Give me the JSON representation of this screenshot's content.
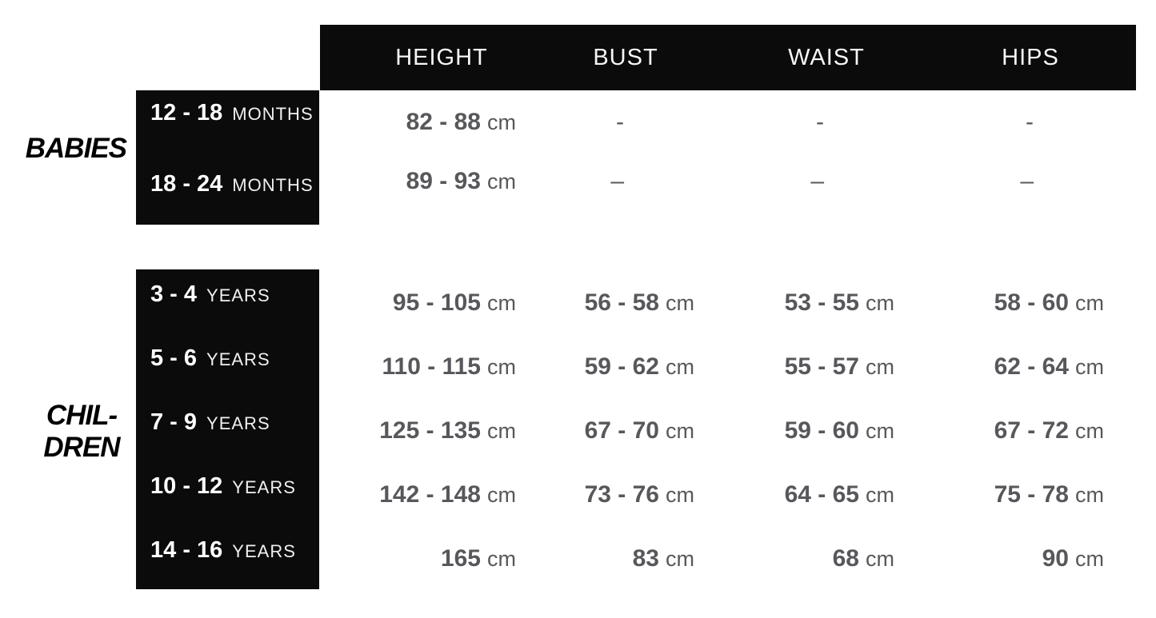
{
  "colors": {
    "background": "#ffffff",
    "bar_black": "#0b0b0b",
    "header_text": "#f6f6f6",
    "size_label_text": "#ffffff",
    "data_text": "#57585b",
    "side_label_text": "#000000"
  },
  "chart_data": {
    "type": "table",
    "columns": [
      "HEIGHT",
      "BUST",
      "WAIST",
      "HIPS"
    ],
    "sections": [
      {
        "group_label_lines": [
          "BABIES"
        ],
        "rows": [
          {
            "size": "12 - 18",
            "size_unit": "MONTHS",
            "cells": [
              [
                "82 - 88",
                "cm"
              ],
              [
                "-",
                ""
              ],
              [
                "-",
                ""
              ],
              [
                "-",
                ""
              ]
            ]
          },
          {
            "size": "18 - 24",
            "size_unit": "MONTHS",
            "cells": [
              [
                "89 - 93",
                "cm"
              ],
              [
                "–",
                ""
              ],
              [
                "–",
                ""
              ],
              [
                "–",
                ""
              ]
            ]
          }
        ]
      },
      {
        "group_label_lines": [
          "CHIL-",
          "DREN"
        ],
        "rows": [
          {
            "size": "3 - 4",
            "size_unit": "YEARS",
            "cells": [
              [
                "95 - 105",
                "cm"
              ],
              [
                "56 - 58",
                "cm"
              ],
              [
                "53 - 55",
                "cm"
              ],
              [
                "58 - 60",
                "cm"
              ]
            ]
          },
          {
            "size": "5 - 6",
            "size_unit": "YEARS",
            "cells": [
              [
                "110 - 115",
                "cm"
              ],
              [
                "59 - 62",
                "cm"
              ],
              [
                "55 - 57",
                "cm"
              ],
              [
                "62 - 64",
                "cm"
              ]
            ]
          },
          {
            "size": "7 - 9",
            "size_unit": "YEARS",
            "cells": [
              [
                "125 - 135",
                "cm"
              ],
              [
                "67 - 70",
                "cm"
              ],
              [
                "59 - 60",
                "cm"
              ],
              [
                "67 - 72",
                "cm"
              ]
            ]
          },
          {
            "size": "10 - 12",
            "size_unit": "YEARS",
            "cells": [
              [
                "142 - 148",
                "cm"
              ],
              [
                "73 - 76",
                "cm"
              ],
              [
                "64 - 65",
                "cm"
              ],
              [
                "75 - 78",
                "cm"
              ]
            ]
          },
          {
            "size": "14 - 16",
            "size_unit": "YEARS",
            "cells": [
              [
                "165",
                "cm"
              ],
              [
                "83",
                "cm"
              ],
              [
                "68",
                "cm"
              ],
              [
                "90",
                "cm"
              ]
            ]
          }
        ]
      }
    ]
  }
}
